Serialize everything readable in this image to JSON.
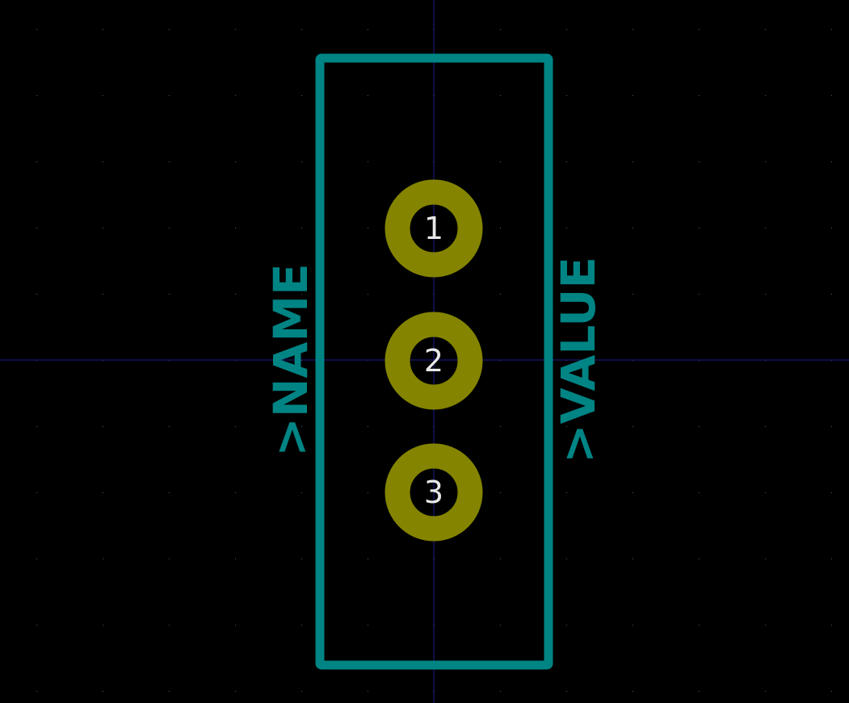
{
  "colors": {
    "background": "#000000",
    "grid_dots": "#5a5a5a",
    "axis_lines": "#1c1c8c",
    "silkscreen": "#008484",
    "pad_ring": "#848400",
    "pad_hole": "#000000",
    "pad_text": "#e8e8e8"
  },
  "footprint": {
    "name_label": ">NAME",
    "value_label": ">VALUE",
    "pads": [
      {
        "number": "1"
      },
      {
        "number": "2"
      },
      {
        "number": "3"
      }
    ]
  }
}
